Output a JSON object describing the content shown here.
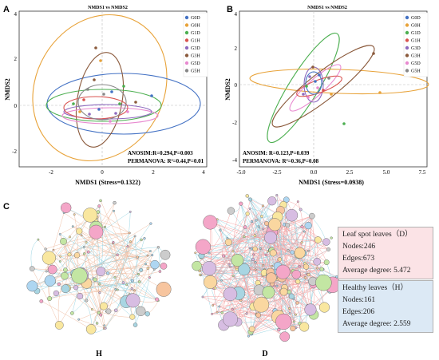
{
  "panels": {
    "A": {
      "letter": "A",
      "title": "NMDS1 vs NMDS2",
      "xlabel": "NMDS1 (Stress=0.1322)",
      "ylabel": "NMDS2",
      "xticks": [
        "-2",
        "0",
        "2",
        "4"
      ],
      "yticks": [
        "4",
        "2",
        "0",
        "-2"
      ],
      "anosim": "ANOSIM:R=0.294,P=0.003",
      "permanova": "PERMANOVA: R²=0.44,P=0.01"
    },
    "B": {
      "letter": "B",
      "title": "NMDS1 vs NMDS2",
      "xlabel": "NMDS1 (Stress=0.0938)",
      "ylabel": "NMDS2",
      "xticks": [
        "-5.0",
        "-2.5",
        "0.0",
        "2.5",
        "5.0",
        "7.5"
      ],
      "yticks": [
        "4",
        "2",
        "0",
        "-2",
        "-4"
      ],
      "anosim": "ANOSIM: R=0.123,P=0.039",
      "permanova": "PERMANOVA: R²=0.36,P=0.08"
    },
    "C": {
      "letter": "C",
      "network_H_label": "H",
      "network_D_label": "D"
    }
  },
  "legend": [
    {
      "label": "G0D",
      "color": "#4472c4"
    },
    {
      "label": "G0H",
      "color": "#e8a33a"
    },
    {
      "label": "G1D",
      "color": "#4caf50"
    },
    {
      "label": "G1H",
      "color": "#d9534f"
    },
    {
      "label": "G3D",
      "color": "#8e6bbf"
    },
    {
      "label": "G3H",
      "color": "#8b5a3c"
    },
    {
      "label": "G5D",
      "color": "#e88ad0"
    },
    {
      "label": "G5H",
      "color": "#888888"
    }
  ],
  "leaf_spot_box": {
    "title": "Leaf spot leaves（D）",
    "nodes": "Nodes:246",
    "edges": "Edges:673",
    "avg_degree": "Average degree:  5.472",
    "bg_color": "#fbe3e6"
  },
  "healthy_box": {
    "title": "Healthy leaves（H）",
    "nodes": "Nodes:161",
    "edges": "Edges:206",
    "avg_degree": "Average degree:  2.559",
    "bg_color": "#dce9f5"
  }
}
